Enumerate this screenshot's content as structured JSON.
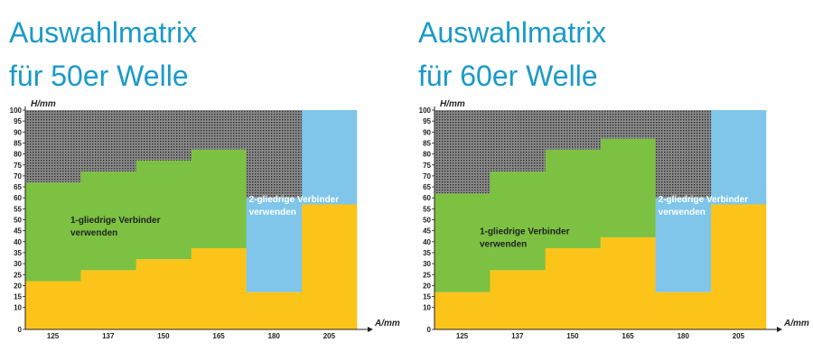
{
  "chart_data": [
    {
      "type": "area",
      "title_lines": [
        "Auswahlmatrix",
        "für 50er Welle"
      ],
      "xlabel": "A/mm",
      "ylabel": "H/mm",
      "ylim": [
        0,
        100
      ],
      "yticks": [
        0,
        10,
        15,
        20,
        25,
        30,
        35,
        40,
        45,
        50,
        55,
        60,
        65,
        70,
        75,
        80,
        85,
        90,
        95,
        100
      ],
      "categories": [
        "125",
        "137",
        "150",
        "165",
        "180",
        "205"
      ],
      "column_widths": [
        1,
        1,
        1,
        1,
        1,
        1
      ],
      "series": [
        {
          "name": "gelb",
          "color": "#fcc419",
          "lower": [
            0,
            0,
            0,
            0,
            0,
            0
          ],
          "upper": [
            22,
            27,
            32,
            37,
            17,
            57
          ]
        },
        {
          "name": "1-gliedrige Verbinder verwenden",
          "color": "#7cc142",
          "lower": [
            22,
            27,
            32,
            37,
            null,
            null
          ],
          "upper": [
            67,
            72,
            77,
            82,
            null,
            null
          ]
        },
        {
          "name": "2-gliedrige Verbinder verwenden",
          "color": "#7fc6ea",
          "lower": [
            null,
            null,
            null,
            null,
            17,
            57
          ],
          "upper": [
            null,
            null,
            null,
            null,
            60,
            100
          ]
        },
        {
          "name": "grau",
          "color": "#6e6e6e",
          "lower": [
            67,
            72,
            77,
            82,
            60,
            null
          ],
          "upper": [
            100,
            100,
            100,
            100,
            100,
            null
          ]
        }
      ],
      "labels": {
        "one_link_line1": "1-gliedrige Verbinder",
        "one_link_line2": "verwenden",
        "two_link_line1": "2-gliedrige Verbinder",
        "two_link_line2": "verwenden"
      }
    },
    {
      "type": "area",
      "title_lines": [
        "Auswahlmatrix",
        "für 60er Welle"
      ],
      "xlabel": "A/mm",
      "ylabel": "H/mm",
      "ylim": [
        0,
        100
      ],
      "yticks": [
        0,
        10,
        15,
        20,
        25,
        30,
        35,
        40,
        45,
        50,
        55,
        60,
        65,
        70,
        75,
        80,
        85,
        90,
        95,
        100
      ],
      "categories": [
        "125",
        "137",
        "150",
        "165",
        "180",
        "205"
      ],
      "column_widths": [
        1,
        1,
        1,
        1,
        1,
        1
      ],
      "series": [
        {
          "name": "gelb",
          "color": "#fcc419",
          "lower": [
            0,
            0,
            0,
            0,
            0,
            0
          ],
          "upper": [
            17,
            27,
            37,
            42,
            17,
            57
          ]
        },
        {
          "name": "1-gliedrige Verbinder verwenden",
          "color": "#7cc142",
          "lower": [
            17,
            27,
            37,
            42,
            null,
            null
          ],
          "upper": [
            62,
            72,
            82,
            87,
            null,
            null
          ]
        },
        {
          "name": "2-gliedrige Verbinder verwenden",
          "color": "#7fc6ea",
          "lower": [
            null,
            null,
            null,
            null,
            17,
            57
          ],
          "upper": [
            null,
            null,
            null,
            null,
            60,
            100
          ]
        },
        {
          "name": "grau",
          "color": "#6e6e6e",
          "lower": [
            62,
            72,
            82,
            87,
            60,
            null
          ],
          "upper": [
            100,
            100,
            100,
            100,
            100,
            null
          ]
        }
      ],
      "labels": {
        "one_link_line1": "1-gliedrige Verbinder",
        "one_link_line2": "verwenden",
        "two_link_line1": "2-gliedrige Verbinder",
        "two_link_line2": "verwenden"
      }
    }
  ]
}
